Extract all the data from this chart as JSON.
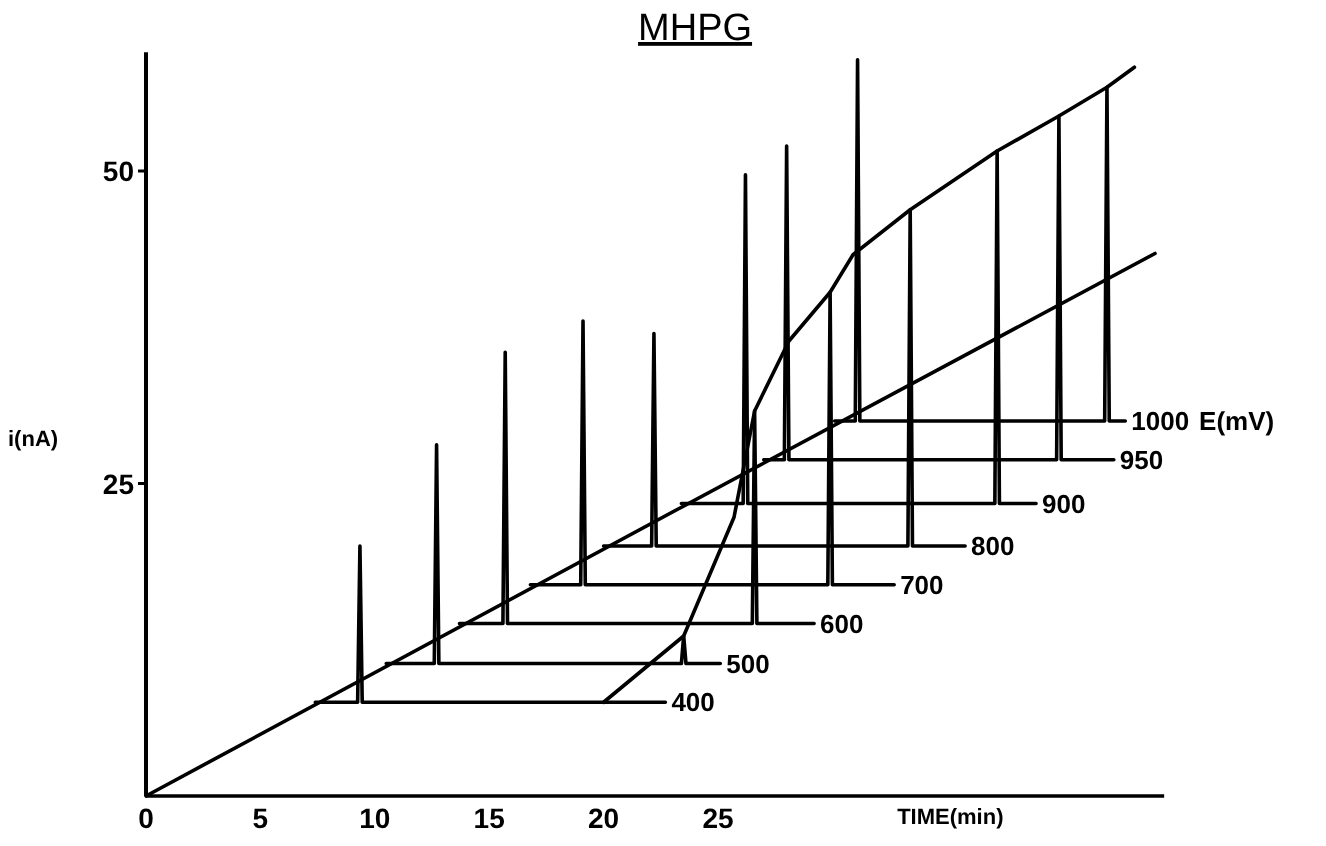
{
  "chart_data": {
    "type": "line",
    "title": "MHPG",
    "xlabel": "TIME(min)",
    "ylabel": "i(nA)",
    "legend_title": "E(mV)",
    "xlim": [
      0,
      44.5
    ],
    "ylim": [
      0,
      59.5
    ],
    "xticks": [
      0,
      5,
      10,
      15,
      20,
      25
    ],
    "yticks": [
      25,
      50
    ],
    "series": [
      {
        "color": "#000000",
        "x": [
          0,
          23.3,
          44.1
        ],
        "values": [
          0,
          23.0,
          43.4
        ]
      },
      {
        "color": "#000000",
        "x": [
          20.0,
          23.5,
          25.7,
          26.6,
          28.1,
          29.9,
          30.9,
          33.4,
          37.2,
          39.9,
          42.0,
          43.2
        ],
        "values": [
          7.5,
          12.8,
          22.3,
          30.8,
          36.4,
          40.3,
          43.3,
          46.9,
          51.6,
          54.4,
          56.7,
          58.3
        ]
      },
      {
        "name": "400",
        "color": "#000000",
        "x": [
          7.4,
          9.25,
          9.35,
          9.45,
          22.7
        ],
        "values": [
          7.5,
          7.5,
          20.0,
          7.5,
          7.5
        ]
      },
      {
        "name": "500",
        "color": "#000000",
        "x": [
          10.5,
          12.6,
          12.7,
          12.8,
          23.4,
          23.5,
          23.6,
          25.1
        ],
        "values": [
          10.6,
          10.6,
          28.1,
          10.6,
          10.6,
          12.8,
          10.6,
          10.6
        ]
      },
      {
        "name": "600",
        "color": "#000000",
        "x": [
          13.7,
          15.6,
          15.7,
          15.8,
          26.5,
          26.6,
          26.7,
          29.2
        ],
        "values": [
          13.8,
          13.8,
          35.5,
          13.8,
          13.8,
          30.8,
          13.8,
          13.8
        ]
      },
      {
        "name": "700",
        "color": "#000000",
        "x": [
          16.8,
          19.0,
          19.1,
          19.2,
          29.8,
          29.9,
          30.0,
          32.7
        ],
        "values": [
          16.9,
          16.9,
          38.0,
          16.9,
          16.9,
          40.3,
          16.9,
          16.9
        ]
      },
      {
        "name": "800",
        "color": "#000000",
        "x": [
          20.0,
          22.1,
          22.2,
          22.3,
          33.3,
          33.4,
          33.5,
          35.8
        ],
        "values": [
          20.0,
          20.0,
          37.0,
          20.0,
          20.0,
          46.9,
          20.0,
          20.0
        ]
      },
      {
        "name": "900",
        "color": "#000000",
        "x": [
          23.4,
          26.1,
          26.2,
          26.3,
          37.1,
          37.2,
          37.3,
          38.9
        ],
        "values": [
          23.4,
          23.4,
          49.7,
          23.4,
          23.4,
          51.6,
          23.4,
          23.4
        ]
      },
      {
        "name": "950",
        "color": "#000000",
        "x": [
          27.0,
          27.9,
          28.0,
          28.1,
          39.8,
          39.9,
          40.0,
          42.3
        ],
        "values": [
          26.9,
          26.9,
          52.0,
          26.9,
          26.9,
          54.4,
          26.9,
          26.9
        ]
      },
      {
        "name": "1000",
        "color": "#000000",
        "x": [
          30.1,
          31.0,
          31.1,
          31.2,
          41.9,
          42.0,
          42.1,
          42.8
        ],
        "values": [
          30.0,
          30.0,
          58.9,
          30.0,
          30.0,
          56.7,
          30.0,
          30.0
        ]
      }
    ]
  }
}
